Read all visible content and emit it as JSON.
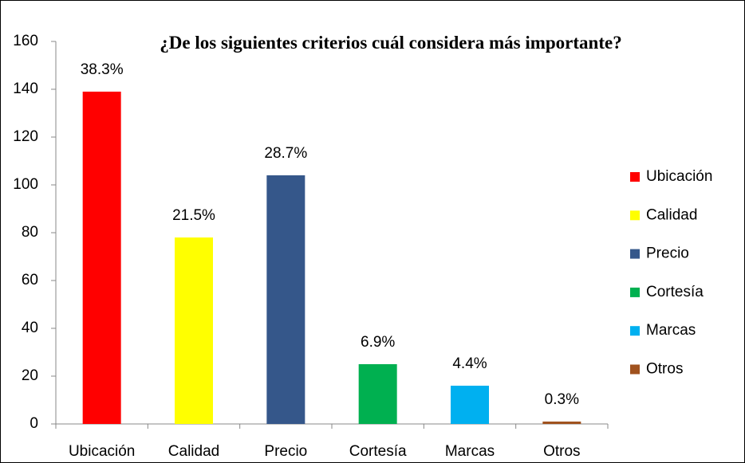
{
  "chart_data": {
    "type": "bar",
    "title": "¿De los siguientes criterios cuál considera más importante?",
    "categories": [
      "Ubicación",
      "Calidad",
      "Precio",
      "Cortesía",
      "Marcas",
      "Otros"
    ],
    "values": [
      139,
      78,
      104,
      25,
      16,
      1
    ],
    "percent_labels": [
      "38.3%",
      "21.5%",
      "28.7%",
      "6.9%",
      "4.4%",
      "0.3%"
    ],
    "colors": [
      "#ff0000",
      "#ffff00",
      "#35578a",
      "#00b050",
      "#00b0f0",
      "#a0521e"
    ],
    "ylim": [
      0,
      160
    ],
    "yticks": [
      0,
      20,
      40,
      60,
      80,
      100,
      120,
      140,
      160
    ],
    "grid": false,
    "legend": "right"
  }
}
